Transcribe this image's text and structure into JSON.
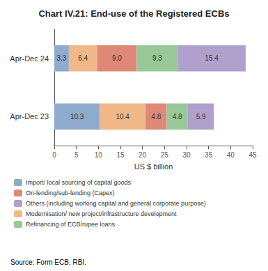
{
  "chart_data": {
    "type": "bar",
    "orientation": "horizontal",
    "stacked": true,
    "title": "Chart IV.21: End-use of the Registered ECBs",
    "categories": [
      "Apr-Dec 23",
      "Apr-Dec 24"
    ],
    "series": [
      {
        "name": "Import/ local sourcing of capital goods",
        "color": "#8eaacc",
        "values": [
          10.3,
          3.3
        ],
        "value_labels": [
          "10.3",
          "3.3"
        ]
      },
      {
        "name": "Modernisation/ new project/infrastructure development",
        "color": "#f0b888",
        "values": [
          10.4,
          6.4
        ],
        "value_labels": [
          "10.4",
          "6.4"
        ]
      },
      {
        "name": "On-lending/sub-lending (Capex)",
        "color": "#e08878",
        "values": [
          4.8,
          9.0
        ],
        "value_labels": [
          "4.8",
          "9.0"
        ]
      },
      {
        "name": "Refinancing of ECB/rupee loans",
        "color": "#98c898",
        "values": [
          4.8,
          9.3
        ],
        "value_labels": [
          "4.8",
          "9.3"
        ]
      },
      {
        "name": "Others (including working capital and general corporate purpose)",
        "color": "#b0a0cc",
        "values": [
          5.9,
          15.4
        ],
        "value_labels": [
          "5.9",
          "15.4"
        ]
      }
    ],
    "legend_entries": [
      "Import/ local sourcing of capital goods",
      "On-lending/sub-lending (Capex)",
      "Others (including working capital and general corporate purpose)",
      "Modernisation/ new project/infrastructure development",
      "Refinancing of ECB/rupee loans"
    ],
    "legend": "bottom-left",
    "xlabel": "US $ billion",
    "xlim": [
      0,
      45
    ],
    "xticks": [
      0,
      5,
      10,
      15,
      20,
      25,
      30,
      35,
      40,
      45
    ],
    "grid": false,
    "data_labels": true,
    "annotations": [
      "Source: Form ECB, RBI."
    ]
  }
}
